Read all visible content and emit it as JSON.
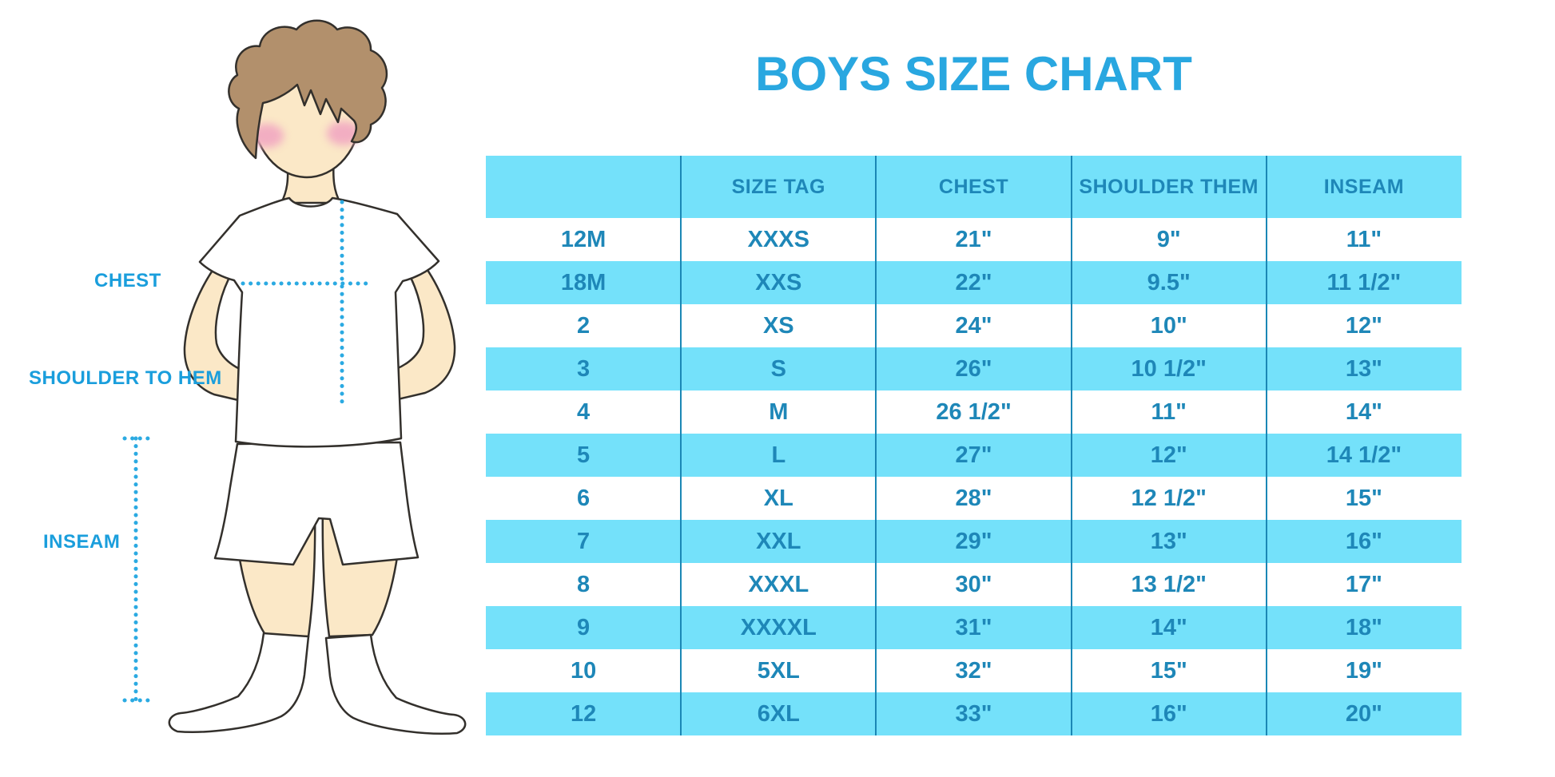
{
  "title": "BOYS SIZE CHART",
  "figure": {
    "labels": {
      "chest": "CHEST",
      "shoulder_to_hem": "SHOULDER TO HEM",
      "inseam": "INSEAM"
    }
  },
  "chart_data": {
    "type": "table",
    "title": "BOYS SIZE CHART",
    "headers": [
      "",
      "SIZE TAG",
      "CHEST",
      "SHOULDER THEM",
      "INSEAM"
    ],
    "rows": [
      [
        "12M",
        "XXXS",
        "21\"",
        "9\"",
        "11\""
      ],
      [
        "18M",
        "XXS",
        "22\"",
        "9.5\"",
        "11 1/2\""
      ],
      [
        "2",
        "XS",
        "24\"",
        "10\"",
        "12\""
      ],
      [
        "3",
        "S",
        "26\"",
        "10 1/2\"",
        "13\""
      ],
      [
        "4",
        "M",
        "26 1/2\"",
        "11\"",
        "14\""
      ],
      [
        "5",
        "L",
        "27\"",
        "12\"",
        "14 1/2\""
      ],
      [
        "6",
        "XL",
        "28\"",
        "12 1/2\"",
        "15\""
      ],
      [
        "7",
        "XXL",
        "29\"",
        "13\"",
        "16\""
      ],
      [
        "8",
        "XXXL",
        "30\"",
        "13 1/2\"",
        "17\""
      ],
      [
        "9",
        "XXXXL",
        "31\"",
        "14\"",
        "18\""
      ],
      [
        "10",
        "5XL",
        "32\"",
        "15\"",
        "19\""
      ],
      [
        "12",
        "6XL",
        "33\"",
        "16\"",
        "20\""
      ]
    ],
    "layout_hints": {
      "striped_rows": true,
      "stripe_on": "header_and_odd_data_rows",
      "grid": "vertical-dividers-only"
    }
  },
  "colors": {
    "stripe_blue": "#74E1FA",
    "divider_blue": "#1B87B5",
    "table_text_blue": "#1E87B8",
    "title_blue": "#29A7E0",
    "label_blue": "#1A9EDC",
    "dotted_line_blue": "#2BAAE2",
    "skin": "#FBE8C7",
    "hair_brown": "#B2906C",
    "cheek_pink": "#F2AEC2",
    "outline": "#33302C"
  }
}
